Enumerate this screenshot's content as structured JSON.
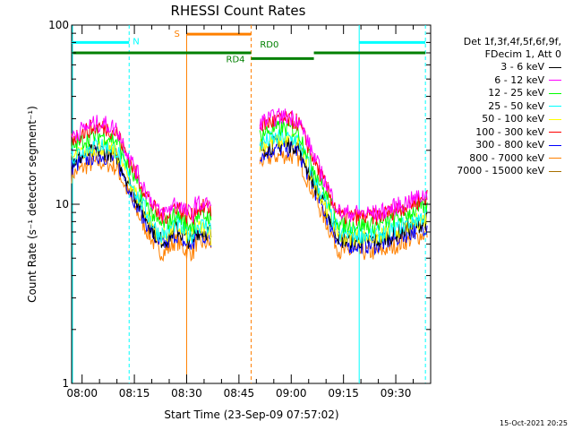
{
  "chart_data": {
    "type": "line",
    "title": "RHESSI Count Rates",
    "xlabel": "Start Time (23-Sep-09 07:57:02)",
    "ylabel": "Count Rate (s⁻¹ detector segment⁻¹)",
    "y_scale": "log",
    "ylim": [
      1,
      100
    ],
    "xlim_minutes": [
      -3.0,
      100.0
    ],
    "xtick_labels": [
      "08:00",
      "08:15",
      "08:30",
      "08:45",
      "09:00",
      "09:15",
      "09:30"
    ],
    "ytick_labels": [
      "1",
      "10",
      "100"
    ],
    "legend_header": [
      "Det 1f,3f,4f,5f,6f,9f,",
      "FDecim 1, Att 0"
    ],
    "legend_position": "right",
    "series": [
      {
        "name": "3 - 6 keV",
        "color": "#000000",
        "level": 0.54
      },
      {
        "name": "6 - 12 keV",
        "color": "#ff00ff",
        "level": 1.0
      },
      {
        "name": "12 - 25 keV",
        "color": "#00ff00",
        "level": 0.8
      },
      {
        "name": "25 - 50 keV",
        "color": "#00ffff",
        "level": 0.64
      },
      {
        "name": "50 - 100 keV",
        "color": "#ffff00",
        "level": 0.6
      },
      {
        "name": "100 - 300 keV",
        "color": "#ff0000",
        "level": 0.94
      },
      {
        "name": "300 - 800 keV",
        "color": "#0000ff",
        "level": 0.46
      },
      {
        "name": "800 - 7000 keV",
        "color": "#ff8000",
        "level": 0.34
      },
      {
        "name": "7000 - 15000 keV",
        "color": "#a87000",
        "level": 0.0
      }
    ],
    "segments_minutes": [
      [
        -3.0,
        37.0
      ],
      [
        51.0,
        99.0
      ]
    ],
    "annotations": [
      {
        "label": "N",
        "color": "#00ffff",
        "type": "night",
        "ranges": [
          [
            -3.0,
            13.5
          ],
          [
            79.5,
            98.5
          ]
        ],
        "y": 80,
        "vlines": [
          13.5,
          79.5,
          98.5
        ]
      },
      {
        "label": "S",
        "color": "#ff8000",
        "type": "saa",
        "ranges": [
          [
            30.0,
            48.5
          ]
        ],
        "y": 89,
        "vlines": [
          30.0,
          48.5
        ]
      },
      {
        "label": "RD0",
        "color": "#008000",
        "type": "bar",
        "ranges": [
          [
            -3.0,
            48.5
          ],
          [
            66.5,
            98.5
          ]
        ],
        "y": 70
      },
      {
        "label": "RD4",
        "color": "#008000",
        "type": "bar",
        "ranges": [
          [
            48.5,
            66.5
          ]
        ],
        "y": 65
      }
    ]
  },
  "timestamp": "15-Oct-2021 20:25"
}
